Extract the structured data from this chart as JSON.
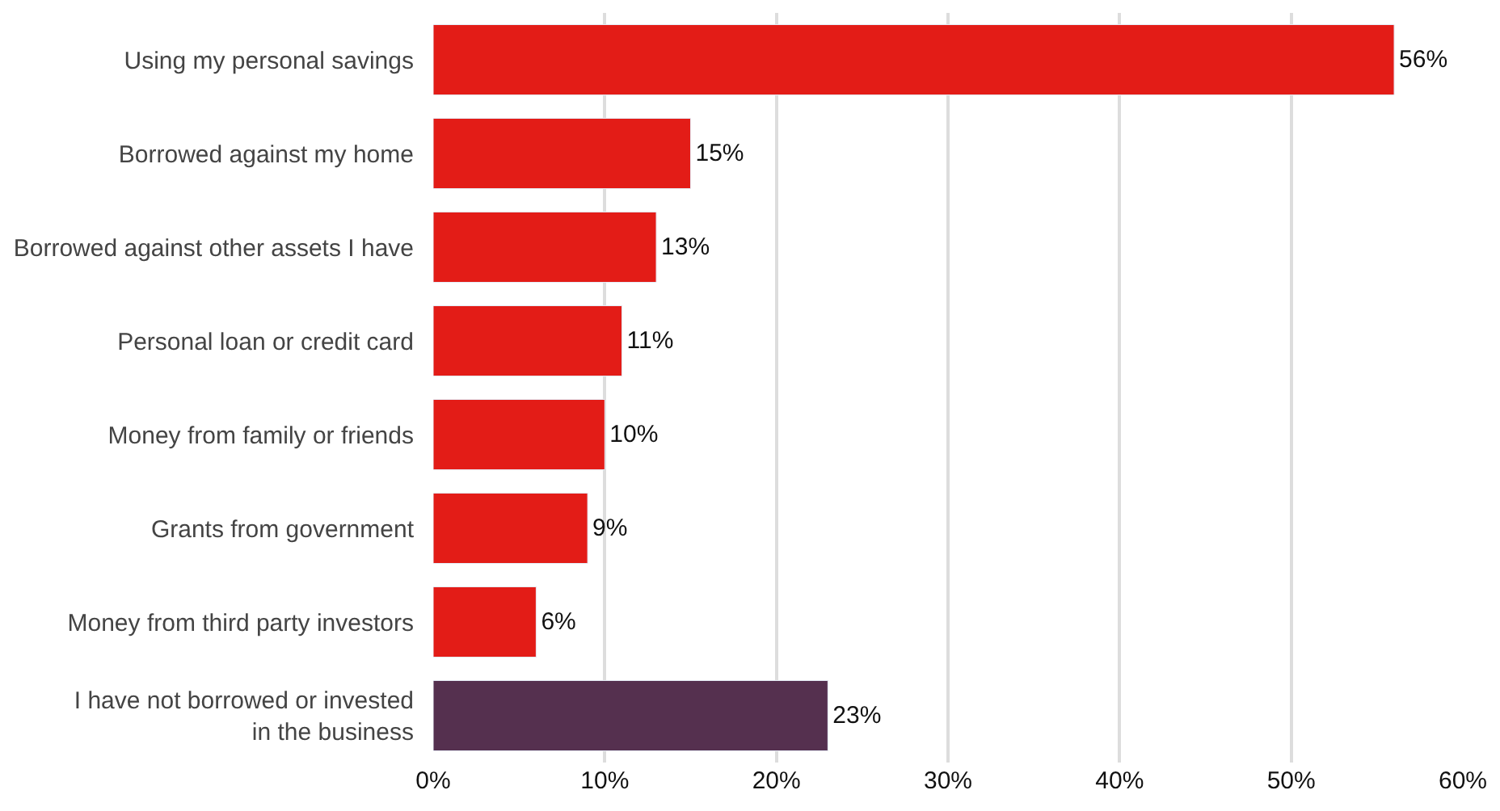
{
  "chart_data": {
    "type": "bar",
    "orientation": "horizontal",
    "categories": [
      "Using my personal savings",
      "Borrowed against my home",
      "Borrowed against other assets I have",
      "Personal loan or credit card",
      "Money from family or friends",
      "Grants from government",
      "Money from third party investors",
      "I have not borrowed or invested\nin the business"
    ],
    "values": [
      56,
      15,
      13,
      11,
      10,
      9,
      6,
      23
    ],
    "value_labels": [
      "56%",
      "15%",
      "13%",
      "11%",
      "10%",
      "9%",
      "6%",
      "23%"
    ],
    "colors": [
      "#e31c17",
      "#e31c17",
      "#e31c17",
      "#e31c17",
      "#e31c17",
      "#e31c17",
      "#e31c17",
      "#55304f"
    ],
    "xlim": [
      0,
      60
    ],
    "xticks": [
      {
        "value": 0,
        "label": "0%"
      },
      {
        "value": 10,
        "label": "10%"
      },
      {
        "value": 20,
        "label": "20%"
      },
      {
        "value": 30,
        "label": "30%"
      },
      {
        "value": 40,
        "label": "40%"
      },
      {
        "value": 50,
        "label": "50%"
      },
      {
        "value": 60,
        "label": "60%"
      }
    ],
    "grid": "x",
    "legend": false
  }
}
